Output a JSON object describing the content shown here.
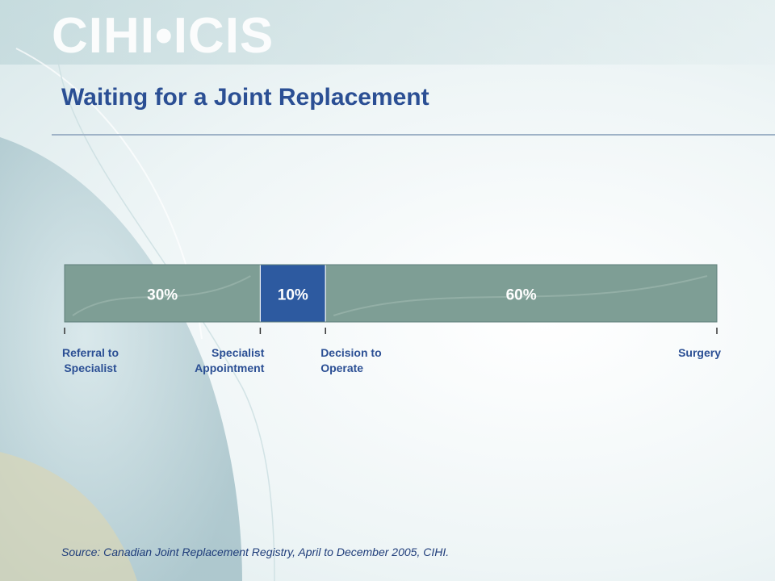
{
  "logo_text": "CIHI•ICIS",
  "title": "Waiting for a Joint Replacement",
  "source": "Source: Canadian Joint Replacement Registry, April to December 2005, CIHI.",
  "colors": {
    "title": "#2b4f94",
    "segment_grey": "#7e9e95",
    "segment_blue": "#2d5aa0",
    "milestone_label": "#2b4f94"
  },
  "chart_data": {
    "type": "bar",
    "orientation": "horizontal-stacked",
    "segments": [
      {
        "label": "30%",
        "value": 30,
        "color": "#7e9e95"
      },
      {
        "label": "10%",
        "value": 10,
        "color": "#2d5aa0"
      },
      {
        "label": "60%",
        "value": 60,
        "color": "#7e9e95"
      }
    ],
    "milestones": [
      {
        "lines": [
          "Referral to",
          "Specialist"
        ],
        "position": 0,
        "align": "center"
      },
      {
        "lines": [
          "Specialist",
          "Appointment"
        ],
        "position": 30,
        "align": "end"
      },
      {
        "lines": [
          "Decision to",
          "Operate"
        ],
        "position": 40,
        "align": "start"
      },
      {
        "lines": [
          "Surgery"
        ],
        "position": 100,
        "align": "end"
      }
    ]
  }
}
